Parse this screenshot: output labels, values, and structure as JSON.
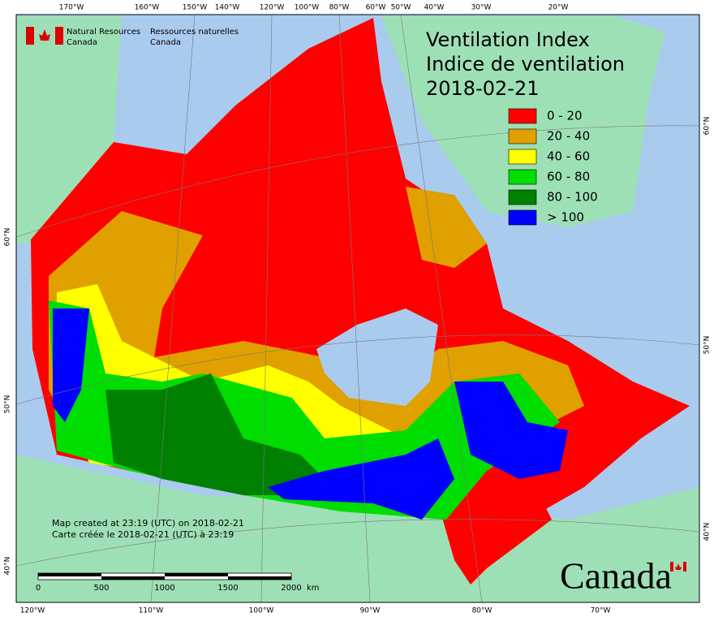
{
  "header": {
    "agency_en": [
      "Natural Resources",
      "Canada"
    ],
    "agency_fr": [
      "Ressources naturelles",
      "Canada"
    ]
  },
  "title": [
    "Ventilation Index",
    "Indice de ventilation",
    "2018-02-21"
  ],
  "legend": [
    {
      "label": "0 - 20",
      "color": "#ff0000"
    },
    {
      "label": "20 - 40",
      "color": "#e0a000"
    },
    {
      "label": "40 - 60",
      "color": "#ffff00"
    },
    {
      "label": "60 - 80",
      "color": "#00dd00"
    },
    {
      "label": "80 - 100",
      "color": "#008000"
    },
    {
      "label": "> 100",
      "color": "#0000ff"
    }
  ],
  "notes": [
    "Map created at 23:19 (UTC) on 2018-02-21",
    "Carte créée le 2018-02-21 (UTC) à 23:19"
  ],
  "scale": {
    "labels": [
      "0",
      "500",
      "1000",
      "1500",
      "2000"
    ],
    "unit": "km"
  },
  "graticule": {
    "top": [
      "170°W",
      "160°W",
      "150°W",
      "140°W",
      "120°W",
      "100°W",
      "80°W",
      "60°W",
      "50°W",
      "40°W",
      "30°W",
      "20°W"
    ],
    "bottom": [
      "120°W",
      "110°W",
      "100°W",
      "90°W",
      "80°W",
      "70°W"
    ],
    "left": [
      "60°N",
      "50°N",
      "40°N"
    ],
    "right": [
      "60°N",
      "50°N",
      "40°N"
    ]
  },
  "wordmark": "Canada"
}
